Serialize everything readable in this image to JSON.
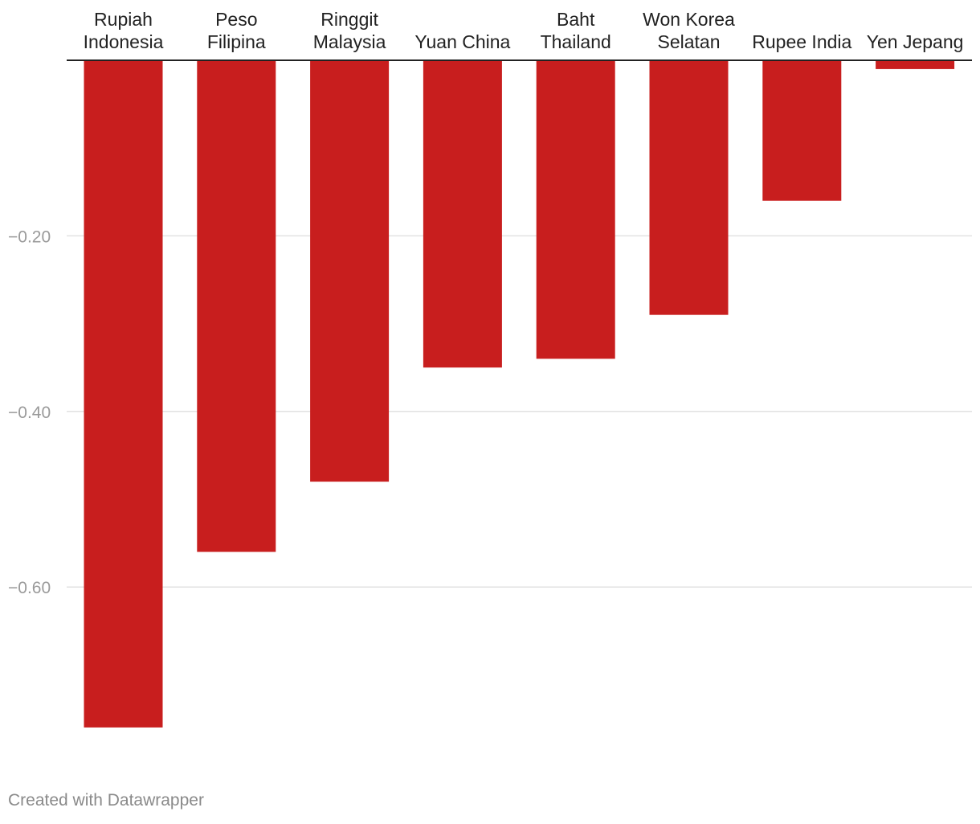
{
  "chart_data": {
    "type": "bar",
    "orientation": "vertical",
    "categories": [
      [
        "Rupiah",
        "Indonesia"
      ],
      [
        "Peso",
        "Filipina"
      ],
      [
        "Ringgit",
        "Malaysia"
      ],
      [
        "Yuan China"
      ],
      [
        "Baht",
        "Thailand"
      ],
      [
        "Won Korea",
        "Selatan"
      ],
      [
        "Rupee India"
      ],
      [
        "Yen Jepang"
      ]
    ],
    "values": [
      -0.76,
      -0.56,
      -0.48,
      -0.35,
      -0.34,
      -0.29,
      -0.16,
      -0.01
    ],
    "yticks": [
      -0.2,
      -0.4,
      -0.6
    ],
    "ytick_labels": [
      "−0.20",
      "−0.40",
      "−0.60"
    ],
    "ylim": [
      -0.8,
      0
    ],
    "category_axis": "top",
    "grid": true,
    "bar_color": "#c81e1e",
    "title": "",
    "xlabel": "",
    "ylabel": ""
  },
  "footer": {
    "credit": "Created with Datawrapper"
  }
}
